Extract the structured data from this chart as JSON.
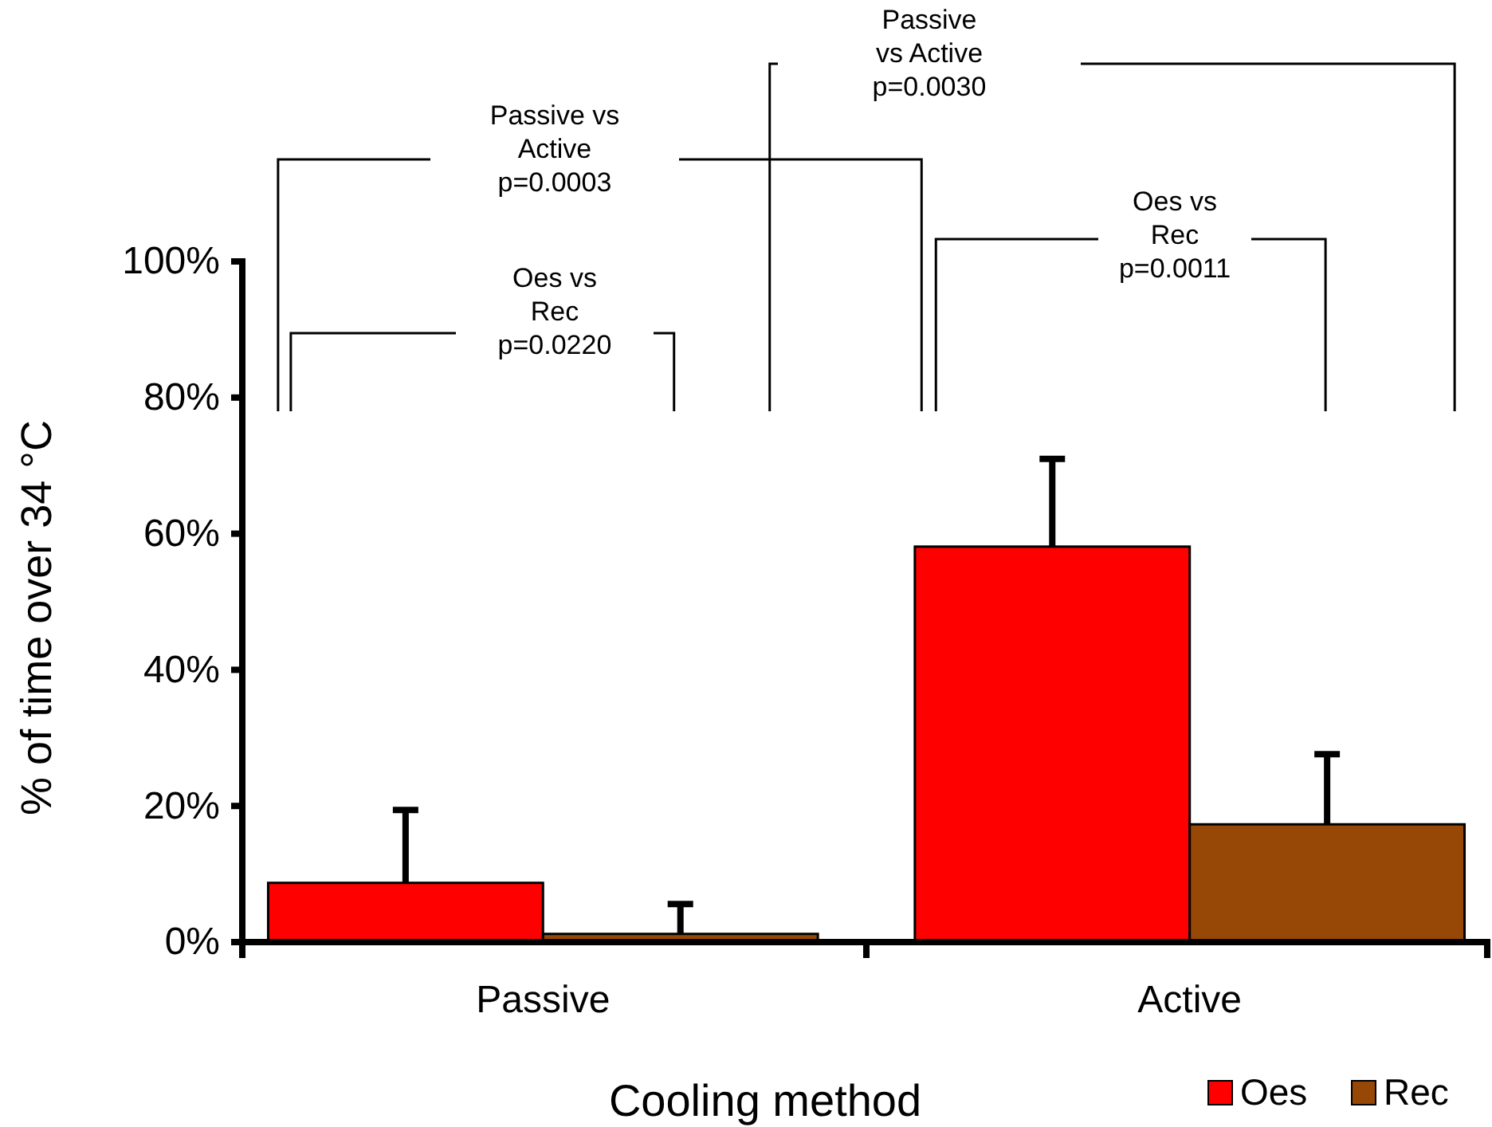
{
  "chart_data": {
    "type": "bar",
    "xlabel": "Cooling method",
    "ylabel": "% of time over 34 °C",
    "categories": [
      "Passive",
      "Active"
    ],
    "series": [
      {
        "name": "Oes",
        "color": "#ff0000",
        "values": [
          8.7,
          58.1
        ],
        "errors": [
          10.7,
          12.9
        ]
      },
      {
        "name": "Rec",
        "color": "#974807",
        "values": [
          1.2,
          17.3
        ],
        "errors": [
          4.4,
          10.3
        ]
      }
    ],
    "ylim": [
      0,
      100
    ],
    "yticks": [
      {
        "value": 0,
        "label": "0%"
      },
      {
        "value": 20,
        "label": "20%"
      },
      {
        "value": 40,
        "label": "40%"
      },
      {
        "value": 60,
        "label": "60%"
      },
      {
        "value": 80,
        "label": "80%"
      },
      {
        "value": 100,
        "label": "100%"
      }
    ],
    "grid": false,
    "legend": "bottom right",
    "annotations": [
      "Passive vs\nActive\np=0.0003",
      "Oes vs\nRec\np=0.0220",
      "Passive\nvs Active\np=0.0030",
      "Oes vs\nRec\np=0.0011"
    ]
  }
}
